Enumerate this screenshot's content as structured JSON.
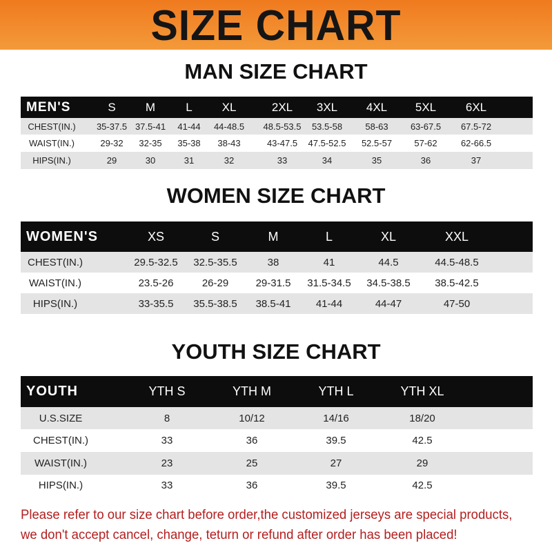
{
  "banner": {
    "title": "SIZE CHART",
    "color": "#f08a2a"
  },
  "men": {
    "title": "MAN SIZE CHART",
    "header": [
      "MEN'S",
      "S",
      "M",
      "L",
      "XL",
      "2XL",
      "3XL",
      "4XL",
      "5XL",
      "6XL"
    ],
    "rows": [
      [
        "CHEST(IN.)",
        "35-37.5",
        "37.5-41",
        "41-44",
        "44-48.5",
        "48.5-53.5",
        "53.5-58",
        "58-63",
        "63-67.5",
        "67.5-72"
      ],
      [
        "WAIST(IN.)",
        "29-32",
        "32-35",
        "35-38",
        "38-43",
        "43-47.5",
        "47.5-52.5",
        "52.5-57",
        "57-62",
        "62-66.5"
      ],
      [
        "HIPS(IN.)",
        "29",
        "30",
        "31",
        "32",
        "33",
        "34",
        "35",
        "36",
        "37"
      ]
    ]
  },
  "women": {
    "title": "WOMEN SIZE CHART",
    "header": [
      "WOMEN'S",
      "XS",
      "S",
      "M",
      "L",
      "XL",
      "XXL"
    ],
    "rows": [
      [
        "CHEST(IN.)",
        "29.5-32.5",
        "32.5-35.5",
        "38",
        "41",
        "44.5",
        "44.5-48.5"
      ],
      [
        "WAIST(IN.)",
        "23.5-26",
        "26-29",
        "29-31.5",
        "31.5-34.5",
        "34.5-38.5",
        "38.5-42.5"
      ],
      [
        "HIPS(IN.)",
        "33-35.5",
        "35.5-38.5",
        "38.5-41",
        "41-44",
        "44-47",
        "47-50"
      ]
    ]
  },
  "youth": {
    "title": "YOUTH SIZE CHART",
    "header": [
      "YOUTH",
      "YTH S",
      "YTH M",
      "YTH L",
      "YTH XL"
    ],
    "rows": [
      [
        "U.S.SIZE",
        "8",
        "10/12",
        "14/16",
        "18/20"
      ],
      [
        "CHEST(IN.)",
        "33",
        "36",
        "39.5",
        "42.5"
      ],
      [
        "WAIST(IN.)",
        "23",
        "25",
        "27",
        "29"
      ],
      [
        "HIPS(IN.)",
        "33",
        "36",
        "39.5",
        "42.5"
      ]
    ]
  },
  "footer": {
    "line1": "Please refer to our size chart before order,the customized jerseys are special products,",
    "line2": "we don't accept cancel, change, teturn or refund after order has been placed!",
    "color": "#b41e1e"
  }
}
